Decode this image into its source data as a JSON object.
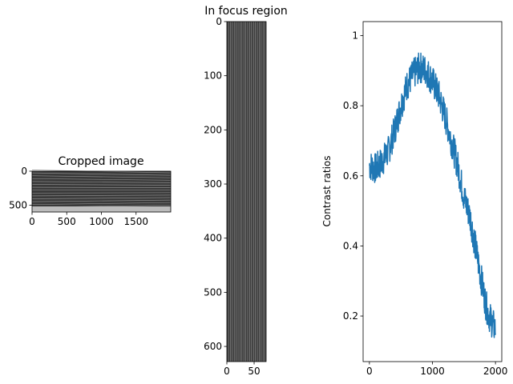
{
  "chart_data": [
    {
      "type": "heatmap",
      "title": "Cropped image",
      "colormap": "gray",
      "xticks": [
        0,
        500,
        1000,
        1500
      ],
      "yticks": [
        0,
        500
      ],
      "xlim": [
        0,
        2000
      ],
      "ylim": [
        600,
        0
      ]
    },
    {
      "type": "heatmap",
      "title": "In focus region",
      "colormap": "gray",
      "xticks": [
        0,
        50
      ],
      "yticks": [
        0,
        100,
        200,
        300,
        400,
        500,
        600
      ],
      "xlim": [
        0,
        72
      ],
      "ylim": [
        628,
        0
      ]
    },
    {
      "type": "line",
      "title": "",
      "xlabel": "",
      "ylabel": "Contrast ratios",
      "xticks": [
        0,
        1000,
        2000
      ],
      "yticks": [
        0.2,
        0.4,
        0.6,
        0.8,
        1.0
      ],
      "xlim": [
        -100,
        2100
      ],
      "ylim": [
        0.07,
        1.04
      ],
      "color": "#1f77b4",
      "series": [
        {
          "x": [
            0,
            100,
            200,
            300,
            400,
            500,
            600,
            700,
            800,
            900,
            1000,
            1100,
            1200,
            1300,
            1400,
            1500,
            1600,
            1700,
            1750,
            1800,
            1850,
            1900,
            1950,
            2000
          ],
          "y": [
            0.63,
            0.62,
            0.64,
            0.67,
            0.73,
            0.8,
            0.86,
            0.89,
            0.91,
            0.9,
            0.87,
            0.83,
            0.77,
            0.7,
            0.63,
            0.54,
            0.48,
            0.38,
            0.33,
            0.28,
            0.23,
            0.2,
            0.18,
            0.16
          ]
        }
      ]
    }
  ]
}
